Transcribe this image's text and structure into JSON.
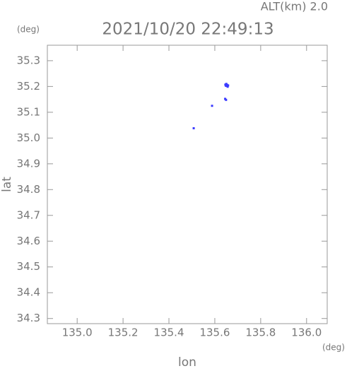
{
  "chart_data": {
    "type": "scatter",
    "annotation": "ALT(km) 2.0",
    "title": "2021/10/20 22:49:13",
    "y_unit": "(deg)",
    "x_unit": "(deg)",
    "x_label": "lon",
    "y_label": "lat",
    "xlim": [
      134.87,
      136.09
    ],
    "ylim": [
      34.28,
      35.36
    ],
    "xticks": [
      {
        "value": 135,
        "label": "135.0"
      },
      135.2,
      135.4,
      135.6,
      135.8,
      {
        "value": 136,
        "label": "136.0"
      }
    ],
    "yticks": [
      34.3,
      34.4,
      34.5,
      34.6,
      34.7,
      34.8,
      34.9,
      {
        "value": 35,
        "label": "35.0"
      },
      35.1,
      35.2,
      35.3
    ],
    "series": [
      {
        "name": "points",
        "color": "#3a3aff",
        "x": [
          135.646,
          135.65,
          135.654,
          135.652,
          135.658,
          135.648,
          135.656,
          135.645,
          135.649,
          135.588,
          135.508
        ],
        "values": [
          35.207,
          35.21,
          35.206,
          35.202,
          35.204,
          35.203,
          35.199,
          35.152,
          35.148,
          35.125,
          35.038
        ]
      }
    ]
  }
}
